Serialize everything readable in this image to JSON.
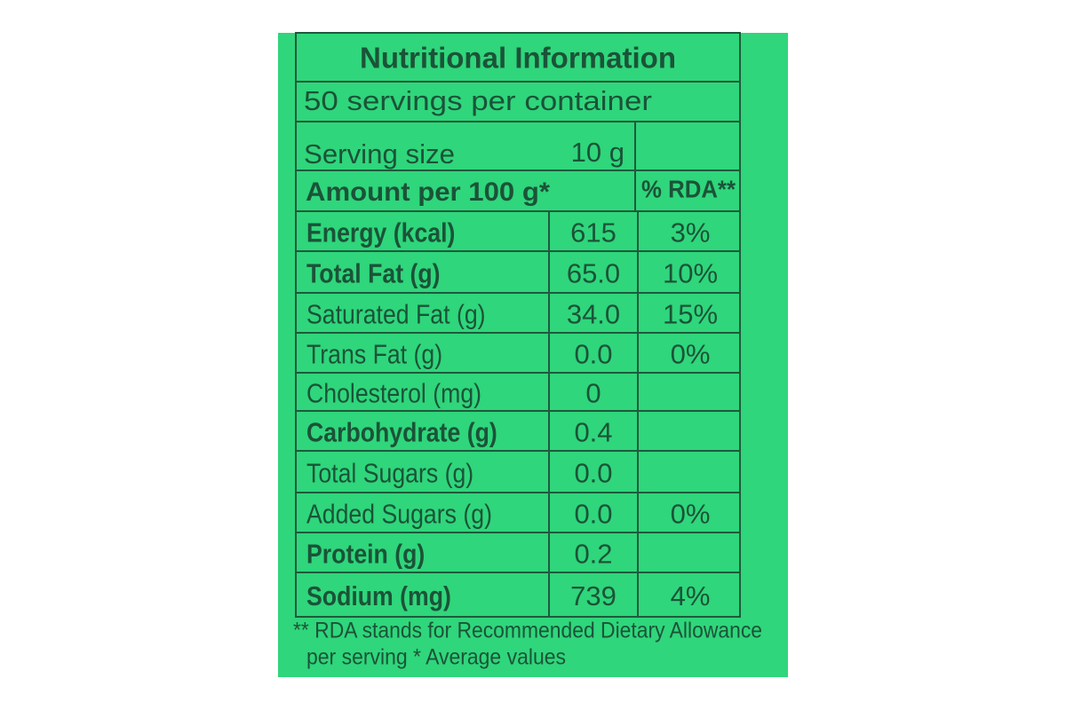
{
  "header": {
    "title": "Nutritional Information",
    "servings": "50 servings per container"
  },
  "serving_size": {
    "label": "Serving size",
    "value": "10 g"
  },
  "columns": {
    "amount": "Amount per 100 g*",
    "rda": "% RDA**"
  },
  "rows": [
    {
      "name": "Energy (kcal)",
      "amount": "615",
      "rda": "3%"
    },
    {
      "name": "Total Fat (g)",
      "amount": "65.0",
      "rda": "10%"
    },
    {
      "name": "Saturated Fat (g)",
      "amount": "34.0",
      "rda": "15%"
    },
    {
      "name": "Trans Fat (g)",
      "amount": "0.0",
      "rda": "0%"
    },
    {
      "name": "Cholesterol (mg)",
      "amount": "0"
    },
    {
      "name": "Carbohydrate (g)",
      "amount": "0.4"
    },
    {
      "name": "Total Sugars (g)",
      "amount": "0.0"
    },
    {
      "name": "Added Sugars (g)",
      "amount": "0.0",
      "rda": "0%"
    },
    {
      "name": "Protein (g)",
      "amount": "0.2"
    },
    {
      "name": "Sodium (mg)",
      "amount": "739",
      "rda": "4%"
    }
  ],
  "footnote": [
    "** RDA stands for Recommended Dietary Allowance",
    "per serving * Average values"
  ]
}
